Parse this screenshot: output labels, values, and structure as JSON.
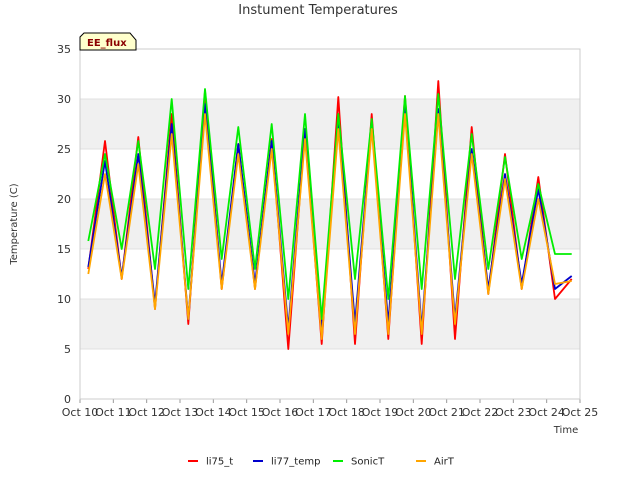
{
  "chart_data": {
    "type": "line",
    "title": "Instument Temperatures",
    "xlabel": "Time",
    "ylabel": "Temperature (C)",
    "site_label": "EE_flux",
    "ylim": [
      0,
      35
    ],
    "yticks": [
      0,
      5,
      10,
      15,
      20,
      25,
      30,
      35
    ],
    "xlim": [
      "2024-10-10",
      "2024-10-25"
    ],
    "xtick_labels": [
      "Oct 10",
      "Oct 11",
      "Oct 12",
      "Oct 13",
      "Oct 14",
      "Oct 15",
      "Oct 16",
      "Oct 17",
      "Oct 18",
      "Oct 19",
      "Oct 20",
      "Oct 21",
      "Oct 22",
      "Oct 23",
      "Oct 24",
      "Oct 25"
    ],
    "grid": "alternating horizontal bands",
    "legend_position": "bottom",
    "series": [
      {
        "name": "li75_t",
        "color": "#ff0000",
        "x": [
          "2024-10-10 06:00",
          "2024-10-10 18:00",
          "2024-10-11 06:00",
          "2024-10-11 18:00",
          "2024-10-12 06:00",
          "2024-10-12 18:00",
          "2024-10-13 06:00",
          "2024-10-13 18:00",
          "2024-10-14 06:00",
          "2024-10-14 18:00",
          "2024-10-15 06:00",
          "2024-10-15 18:00",
          "2024-10-16 06:00",
          "2024-10-16 18:00",
          "2024-10-17 06:00",
          "2024-10-17 18:00",
          "2024-10-18 06:00",
          "2024-10-18 18:00",
          "2024-10-19 06:00",
          "2024-10-19 18:00",
          "2024-10-20 06:00",
          "2024-10-20 18:00",
          "2024-10-21 06:00",
          "2024-10-21 18:00",
          "2024-10-22 06:00",
          "2024-10-22 18:00",
          "2024-10-23 06:00",
          "2024-10-23 18:00",
          "2024-10-24 06:00",
          "2024-10-24 18:00"
        ],
        "y": [
          13.0,
          25.8,
          12.0,
          26.2,
          9.0,
          28.5,
          7.5,
          30.8,
          11.0,
          25.5,
          11.0,
          26.0,
          5.0,
          27.0,
          5.5,
          30.2,
          5.5,
          28.5,
          6.0,
          30.3,
          5.5,
          31.8,
          6.0,
          27.2,
          10.5,
          24.5,
          11.0,
          22.2,
          10.0,
          12.0
        ]
      },
      {
        "name": "li77_temp",
        "color": "#0000cc",
        "x": [
          "2024-10-10 06:00",
          "2024-10-10 18:00",
          "2024-10-11 06:00",
          "2024-10-11 18:00",
          "2024-10-12 06:00",
          "2024-10-12 18:00",
          "2024-10-13 06:00",
          "2024-10-13 18:00",
          "2024-10-14 06:00",
          "2024-10-14 18:00",
          "2024-10-15 06:00",
          "2024-10-15 18:00",
          "2024-10-16 06:00",
          "2024-10-16 18:00",
          "2024-10-17 06:00",
          "2024-10-17 18:00",
          "2024-10-18 06:00",
          "2024-10-18 18:00",
          "2024-10-19 06:00",
          "2024-10-19 18:00",
          "2024-10-20 06:00",
          "2024-10-20 18:00",
          "2024-10-21 06:00",
          "2024-10-21 18:00",
          "2024-10-22 06:00",
          "2024-10-22 18:00",
          "2024-10-23 06:00",
          "2024-10-23 18:00",
          "2024-10-24 06:00",
          "2024-10-24 18:00"
        ],
        "y": [
          13.2,
          23.8,
          12.2,
          24.5,
          9.5,
          27.5,
          8.0,
          29.5,
          11.5,
          25.5,
          11.5,
          25.8,
          7.0,
          27.0,
          7.0,
          28.0,
          7.5,
          27.5,
          7.5,
          29.5,
          7.0,
          29.0,
          8.0,
          25.0,
          11.0,
          22.5,
          11.5,
          21.0,
          11.0,
          12.3
        ]
      },
      {
        "name": "SonicT",
        "color": "#00ee00",
        "x": [
          "2024-10-10 06:00",
          "2024-10-10 18:00",
          "2024-10-11 06:00",
          "2024-10-11 18:00",
          "2024-10-12 06:00",
          "2024-10-12 18:00",
          "2024-10-13 06:00",
          "2024-10-13 18:00",
          "2024-10-14 06:00",
          "2024-10-14 18:00",
          "2024-10-15 06:00",
          "2024-10-15 18:00",
          "2024-10-16 06:00",
          "2024-10-16 18:00",
          "2024-10-17 06:00",
          "2024-10-17 18:00",
          "2024-10-18 06:00",
          "2024-10-18 18:00",
          "2024-10-19 06:00",
          "2024-10-19 18:00",
          "2024-10-20 06:00",
          "2024-10-20 18:00",
          "2024-10-21 06:00",
          "2024-10-21 18:00",
          "2024-10-22 06:00",
          "2024-10-22 18:00",
          "2024-10-23 06:00",
          "2024-10-23 18:00",
          "2024-10-24 06:00",
          "2024-10-24 18:00"
        ],
        "y": [
          15.8,
          24.5,
          15.0,
          25.8,
          13.0,
          30.0,
          11.0,
          31.0,
          14.0,
          27.2,
          13.0,
          27.5,
          10.0,
          28.5,
          8.0,
          28.5,
          12.0,
          28.0,
          10.0,
          30.3,
          11.0,
          30.5,
          12.0,
          26.5,
          13.0,
          24.2,
          14.0,
          21.5,
          14.5,
          14.5
        ]
      },
      {
        "name": "AirT",
        "color": "#ffa500",
        "x": [
          "2024-10-10 06:00",
          "2024-10-10 18:00",
          "2024-10-11 06:00",
          "2024-10-11 18:00",
          "2024-10-12 06:00",
          "2024-10-12 18:00",
          "2024-10-13 06:00",
          "2024-10-13 18:00",
          "2024-10-14 06:00",
          "2024-10-14 18:00",
          "2024-10-15 06:00",
          "2024-10-15 18:00",
          "2024-10-16 06:00",
          "2024-10-16 18:00",
          "2024-10-17 06:00",
          "2024-10-17 18:00",
          "2024-10-18 06:00",
          "2024-10-18 18:00",
          "2024-10-19 06:00",
          "2024-10-19 18:00",
          "2024-10-20 06:00",
          "2024-10-20 18:00",
          "2024-10-21 06:00",
          "2024-10-21 18:00",
          "2024-10-22 06:00",
          "2024-10-22 18:00",
          "2024-10-23 06:00",
          "2024-10-23 18:00",
          "2024-10-24 06:00",
          "2024-10-24 18:00"
        ],
        "y": [
          12.5,
          22.5,
          12.0,
          23.5,
          9.0,
          26.5,
          8.0,
          28.5,
          11.0,
          24.5,
          11.0,
          25.0,
          6.5,
          26.0,
          6.0,
          27.0,
          6.5,
          27.0,
          6.5,
          28.5,
          6.5,
          28.5,
          7.5,
          24.5,
          10.5,
          22.0,
          11.0,
          20.0,
          11.5,
          11.8
        ]
      }
    ]
  }
}
